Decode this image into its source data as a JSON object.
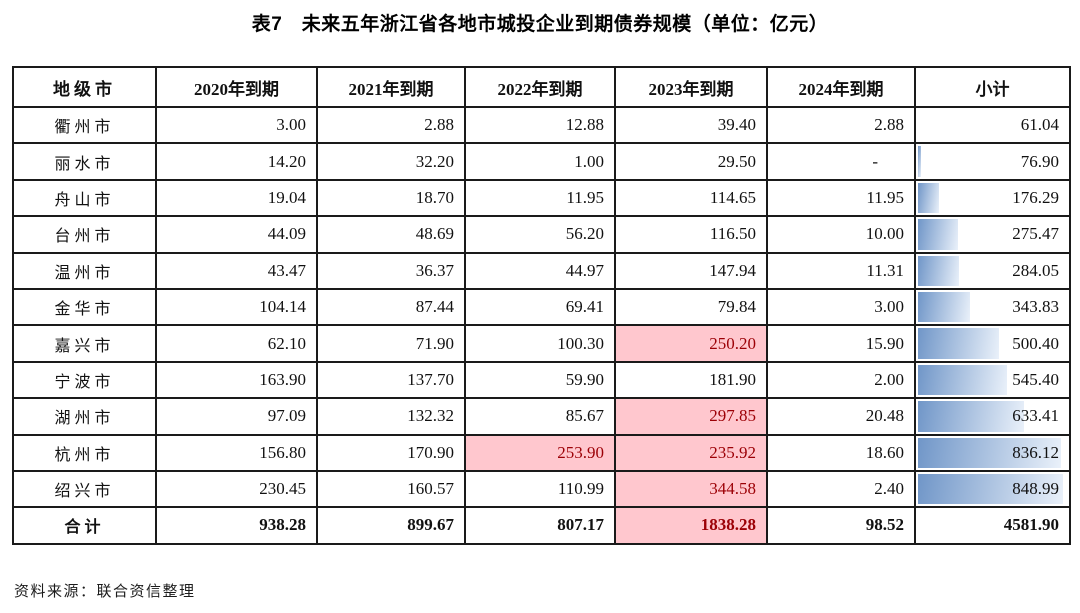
{
  "title": "表7　未来五年浙江省各地市城投企业到期债券规模（单位：亿元）",
  "source_note": "资料来源：联合资信整理",
  "colors": {
    "highlight_bg": "#ffc7ce",
    "highlight_text": "#9c0006",
    "bar_gradient_start": "#7096c8",
    "bar_gradient_end": "#eaf1fa",
    "border": "#1a1a1a"
  },
  "table": {
    "columns": [
      "地级市",
      "2020年到期",
      "2021年到期",
      "2022年到期",
      "2023年到期",
      "2024年到期",
      "小计"
    ],
    "rows": [
      {
        "city": "衢州市",
        "values": [
          "3.00",
          "2.88",
          "12.88",
          "39.40",
          "2.88"
        ],
        "subtotal": "61.04",
        "highlight_cols": []
      },
      {
        "city": "丽水市",
        "values": [
          "14.20",
          "32.20",
          "1.00",
          "29.50",
          "-"
        ],
        "subtotal": "76.90",
        "highlight_cols": []
      },
      {
        "city": "舟山市",
        "values": [
          "19.04",
          "18.70",
          "11.95",
          "114.65",
          "11.95"
        ],
        "subtotal": "176.29",
        "highlight_cols": []
      },
      {
        "city": "台州市",
        "values": [
          "44.09",
          "48.69",
          "56.20",
          "116.50",
          "10.00"
        ],
        "subtotal": "275.47",
        "highlight_cols": []
      },
      {
        "city": "温州市",
        "values": [
          "43.47",
          "36.37",
          "44.97",
          "147.94",
          "11.31"
        ],
        "subtotal": "284.05",
        "highlight_cols": []
      },
      {
        "city": "金华市",
        "values": [
          "104.14",
          "87.44",
          "69.41",
          "79.84",
          "3.00"
        ],
        "subtotal": "343.83",
        "highlight_cols": []
      },
      {
        "city": "嘉兴市",
        "values": [
          "62.10",
          "71.90",
          "100.30",
          "250.20",
          "15.90"
        ],
        "subtotal": "500.40",
        "highlight_cols": [
          3
        ]
      },
      {
        "city": "宁波市",
        "values": [
          "163.90",
          "137.70",
          "59.90",
          "181.90",
          "2.00"
        ],
        "subtotal": "545.40",
        "highlight_cols": []
      },
      {
        "city": "湖州市",
        "values": [
          "97.09",
          "132.32",
          "85.67",
          "297.85",
          "20.48"
        ],
        "subtotal": "633.41",
        "highlight_cols": [
          3
        ]
      },
      {
        "city": "杭州市",
        "values": [
          "156.80",
          "170.90",
          "253.90",
          "235.92",
          "18.60"
        ],
        "subtotal": "836.12",
        "highlight_cols": [
          2,
          3
        ]
      },
      {
        "city": "绍兴市",
        "values": [
          "230.45",
          "160.57",
          "110.99",
          "344.58",
          "2.40"
        ],
        "subtotal": "848.99",
        "highlight_cols": [
          3
        ]
      }
    ],
    "total_row": {
      "city": "合计",
      "values": [
        "938.28",
        "899.67",
        "807.17",
        "1838.28",
        "98.52"
      ],
      "subtotal": "4581.90",
      "highlight_cols": [
        3
      ]
    }
  }
}
